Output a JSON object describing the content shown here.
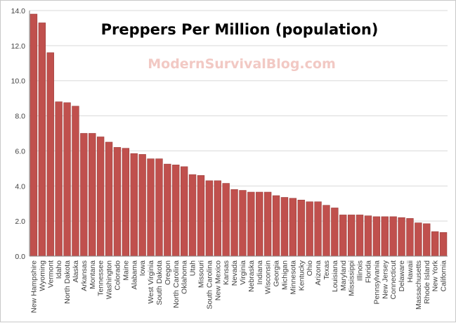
{
  "chart_data": {
    "type": "bar",
    "title": "Preppers Per Million (population)",
    "annotation": "ModernSurvivalBlog.com",
    "xlabel": "",
    "ylabel": "",
    "ylim": [
      0,
      14
    ],
    "yticks": [
      "0.0",
      "2.0",
      "4.0",
      "6.0",
      "8.0",
      "10.0",
      "12.0",
      "14.0"
    ],
    "grid": true,
    "legend": "none",
    "categories": [
      "New Hampshire",
      "Wyoming",
      "Vermont",
      "Idaho",
      "North Dakota",
      "Alaska",
      "Arkansas",
      "Montana",
      "Tennessee",
      "Washington",
      "Colorado",
      "Maine",
      "Alabama",
      "Iowa",
      "West Virginia",
      "South Dakota",
      "Oregon",
      "North Carolina",
      "Oklahoma",
      "Utah",
      "Missouri",
      "South Carolina",
      "New Mexico",
      "Kansas",
      "Nevada",
      "Virginia",
      "Nebraska",
      "Indiana",
      "Wisconsin",
      "Georgia",
      "Michigan",
      "Minnesota",
      "Kentucky",
      "Ohio",
      "Arizona",
      "Texas",
      "Louisiana",
      "Maryland",
      "Mississippi",
      "Illinois",
      "Florida",
      "Pennsylvania",
      "New Jersey",
      "Connecticut",
      "Delaware",
      "Hawaii",
      "Massachusetts",
      "Rhode Island",
      "New York",
      "California"
    ],
    "values": [
      13.8,
      13.3,
      11.6,
      8.8,
      8.75,
      8.55,
      7.0,
      7.0,
      6.8,
      6.5,
      6.2,
      6.15,
      5.85,
      5.8,
      5.55,
      5.55,
      5.25,
      5.2,
      5.1,
      4.65,
      4.6,
      4.3,
      4.3,
      4.15,
      3.8,
      3.75,
      3.65,
      3.65,
      3.65,
      3.45,
      3.35,
      3.3,
      3.2,
      3.1,
      3.1,
      2.9,
      2.75,
      2.35,
      2.35,
      2.35,
      2.3,
      2.25,
      2.25,
      2.25,
      2.2,
      2.15,
      1.9,
      1.85,
      1.4,
      1.35
    ],
    "colors": {
      "bar": "#c0504d",
      "bar_stroke": "#9b3d3a",
      "grid": "#d9d9d9",
      "axis": "#868686",
      "title": "#000000",
      "annotation": "#f2c9c4"
    }
  }
}
